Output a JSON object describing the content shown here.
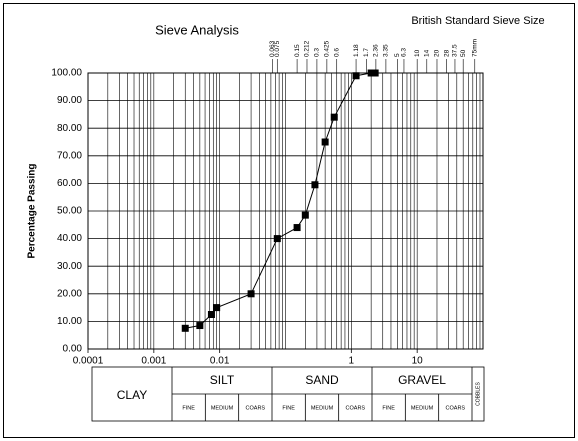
{
  "chart_data": {
    "type": "line",
    "title": "Sieve Analysis",
    "subtitle": "British Standard Sieve Size",
    "y_label": "Percentage Passing",
    "log_x": true,
    "grid": true,
    "color": "#000000",
    "marker": "square",
    "xlim": [
      0.0001,
      100
    ],
    "ylim": [
      0,
      100
    ],
    "xticks": [
      0.0001,
      0.001,
      0.01,
      1,
      10
    ],
    "yticks": [
      {
        "value": 0,
        "label": "0.00"
      },
      {
        "value": 10,
        "label": "10.00"
      },
      {
        "value": 20,
        "label": "20.00"
      },
      {
        "value": 30,
        "label": "30.00"
      },
      {
        "value": 40,
        "label": "40.00"
      },
      {
        "value": 50,
        "label": "50.00"
      },
      {
        "value": 60,
        "label": "60.00"
      },
      {
        "value": 70,
        "label": "70.00"
      },
      {
        "value": 80,
        "label": "80.00"
      },
      {
        "value": 90,
        "label": "90.00"
      },
      {
        "value": 100,
        "label": "100.00"
      }
    ],
    "sieve_sizes": [
      {
        "value": 0.063,
        "label": "0.063"
      },
      {
        "value": 0.075,
        "label": "0.075"
      },
      {
        "value": 0.15,
        "label": "0.15"
      },
      {
        "value": 0.212,
        "label": "0.212"
      },
      {
        "value": 0.3,
        "label": "0.3"
      },
      {
        "value": 0.425,
        "label": "0.425"
      },
      {
        "value": 0.6,
        "label": "0.6"
      },
      {
        "value": 1.18,
        "label": "1.18"
      },
      {
        "value": 1.7,
        "label": "1.7"
      },
      {
        "value": 2.36,
        "label": "2.36"
      },
      {
        "value": 3.35,
        "label": "3.35"
      },
      {
        "value": 5,
        "label": "5"
      },
      {
        "value": 6.3,
        "label": "6.3"
      },
      {
        "value": 10,
        "label": "10"
      },
      {
        "value": 14,
        "label": "14"
      },
      {
        "value": 20,
        "label": "20"
      },
      {
        "value": 28,
        "label": "28"
      },
      {
        "value": 37.5,
        "label": "37.5"
      },
      {
        "value": 50,
        "label": "50"
      },
      {
        "value": 75,
        "label": "75mm"
      }
    ],
    "x": [
      0.003,
      0.005,
      0.0075,
      0.009,
      0.03,
      0.075,
      0.15,
      0.2,
      0.28,
      0.4,
      0.55,
      1.18,
      2,
      2.3
    ],
    "values": [
      7.5,
      8.5,
      12.5,
      15,
      20,
      40,
      44,
      48.5,
      59.5,
      75,
      84,
      99,
      100,
      100
    ],
    "classification": {
      "clay": "CLAY",
      "cobbles": "COBBLES",
      "groups": [
        {
          "name": "SILT",
          "sub": [
            "FINE",
            "MEDIUM",
            "COARS"
          ]
        },
        {
          "name": "SAND",
          "sub": [
            "FINE",
            "MEDIUM",
            "COARS"
          ]
        },
        {
          "name": "GRAVEL",
          "sub": [
            "FINE",
            "MEDIUM",
            "COARS"
          ]
        }
      ]
    }
  }
}
